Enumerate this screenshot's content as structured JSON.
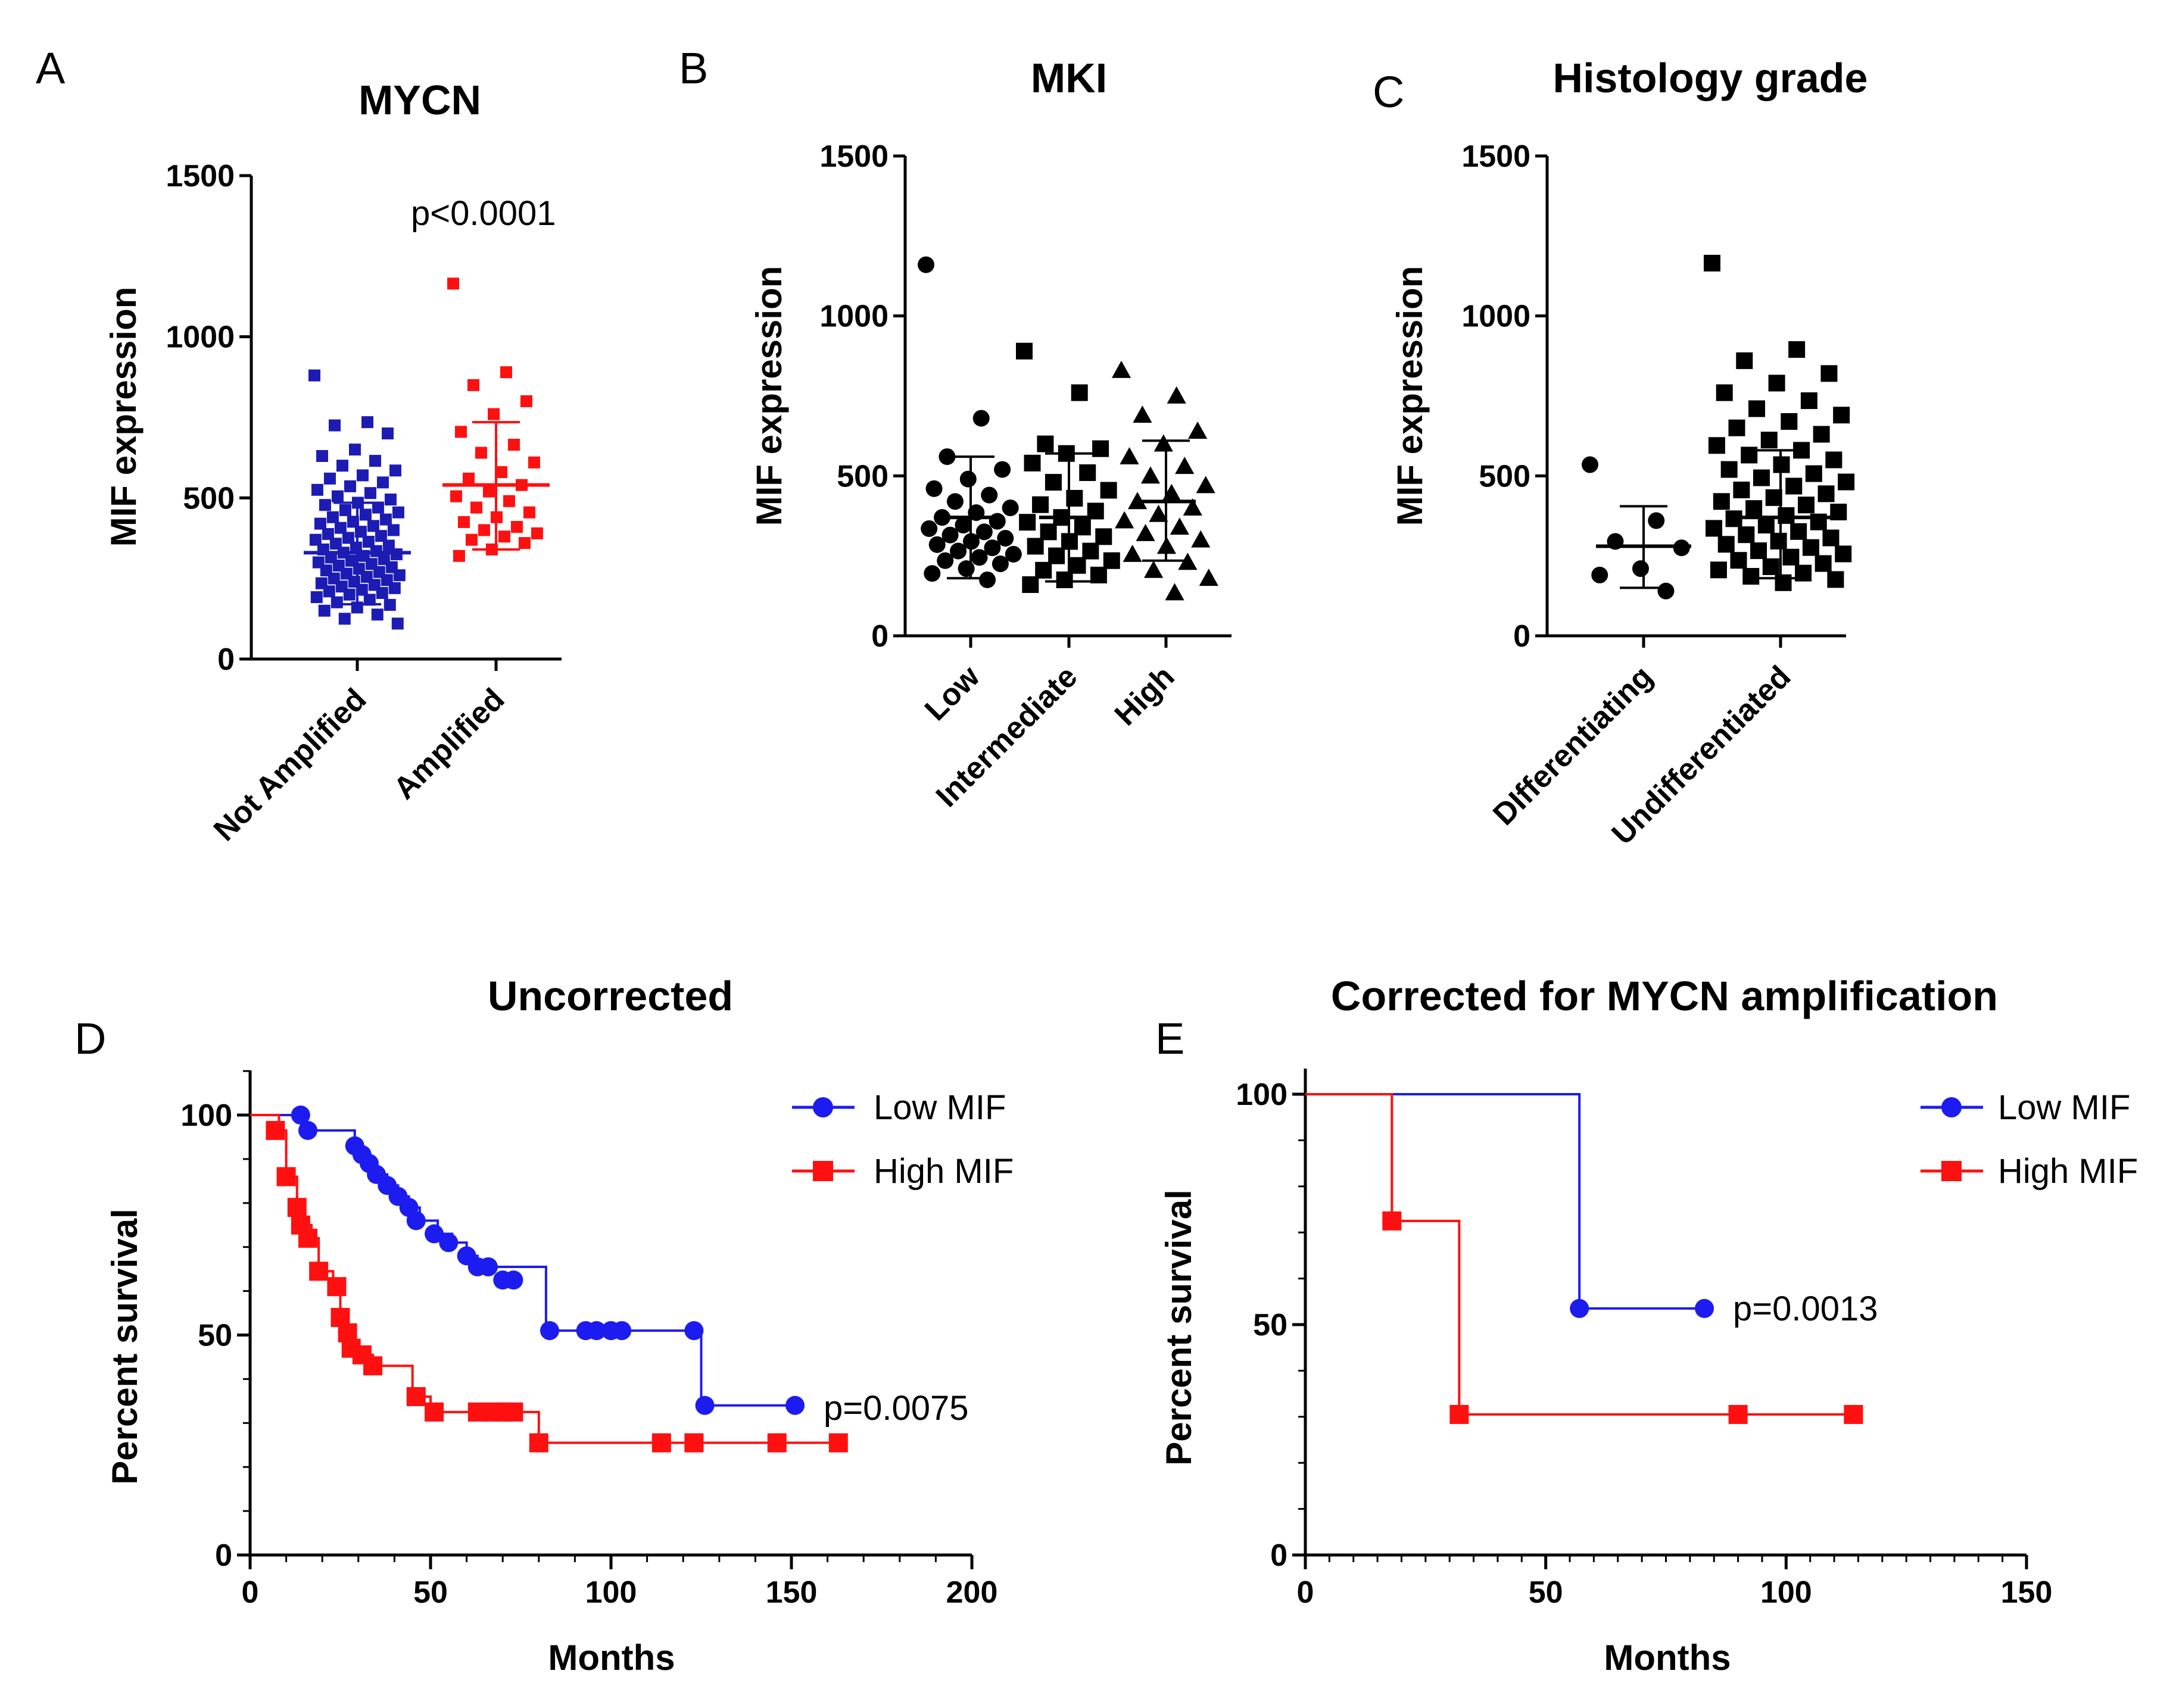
{
  "chart_data": [
    {
      "panel_label": "A",
      "type": "scatter",
      "title": "MYCN",
      "ylabel": "MIF expression",
      "ylim": [
        0,
        1500
      ],
      "yticks": [
        0,
        500,
        1000,
        1500
      ],
      "categories": [
        "Not Amplified",
        "Amplified"
      ],
      "annotation": "p<0.0001",
      "groups": [
        {
          "name": "Not Amplified",
          "color": "#1c1cb4",
          "marker": "square",
          "mean": 330,
          "sd_low": 170,
          "sd_high": 485,
          "values": [
            880,
            735,
            725,
            700,
            650,
            630,
            615,
            600,
            585,
            570,
            560,
            548,
            536,
            525,
            515,
            505,
            495,
            485,
            478,
            470,
            462,
            455,
            448,
            440,
            433,
            426,
            420,
            413,
            407,
            400,
            395,
            388,
            382,
            376,
            370,
            364,
            358,
            352,
            346,
            340,
            335,
            330,
            325,
            320,
            315,
            310,
            305,
            300,
            295,
            290,
            285,
            280,
            275,
            270,
            265,
            260,
            255,
            250,
            245,
            240,
            235,
            230,
            225,
            220,
            215,
            210,
            205,
            200,
            192,
            184,
            176,
            168,
            160,
            150,
            138,
            125,
            110
          ]
        },
        {
          "name": "Amplified",
          "color": "#ff1010",
          "marker": "square",
          "mean": 540,
          "sd_low": 340,
          "sd_high": 735,
          "values": [
            1165,
            890,
            850,
            800,
            760,
            705,
            665,
            640,
            610,
            580,
            560,
            540,
            520,
            505,
            490,
            470,
            455,
            440,
            425,
            410,
            400,
            390,
            380,
            370,
            360,
            340,
            320
          ]
        }
      ]
    },
    {
      "panel_label": "B",
      "type": "scatter",
      "title": "MKI",
      "ylabel": "MIF expression",
      "ylim": [
        0,
        1500
      ],
      "yticks": [
        0,
        500,
        1000,
        1500
      ],
      "categories": [
        "Low",
        "Intermediate",
        "High"
      ],
      "groups": [
        {
          "name": "Low",
          "color": "#000000",
          "marker": "circle",
          "mean": 370,
          "sd_low": 180,
          "sd_high": 560,
          "values": [
            1160,
            680,
            560,
            520,
            490,
            460,
            440,
            420,
            400,
            385,
            370,
            358,
            346,
            335,
            325,
            315,
            305,
            295,
            285,
            275,
            265,
            255,
            245,
            235,
            225,
            210,
            195,
            175
          ]
        },
        {
          "name": "Intermediate",
          "color": "#000000",
          "marker": "square",
          "mean": 370,
          "sd_low": 170,
          "sd_high": 570,
          "values": [
            890,
            760,
            600,
            585,
            570,
            540,
            510,
            480,
            455,
            430,
            410,
            390,
            370,
            355,
            340,
            325,
            310,
            295,
            280,
            265,
            250,
            235,
            220,
            205,
            190,
            175,
            160
          ]
        },
        {
          "name": "High",
          "color": "#000000",
          "marker": "triangle",
          "mean": 420,
          "sd_low": 235,
          "sd_high": 610,
          "values": [
            830,
            750,
            690,
            640,
            600,
            560,
            530,
            500,
            470,
            445,
            420,
            400,
            380,
            360,
            340,
            320,
            300,
            280,
            255,
            230,
            205,
            180,
            135
          ]
        }
      ]
    },
    {
      "panel_label": "C",
      "type": "scatter",
      "title": "Histology grade",
      "ylabel": "MIF expression",
      "ylim": [
        0,
        1500
      ],
      "yticks": [
        0,
        500,
        1000,
        1500
      ],
      "categories": [
        "DIfferentiating",
        "Undifferentiated"
      ],
      "groups": [
        {
          "name": "DIfferentiating",
          "color": "#000000",
          "marker": "circle",
          "mean": 280,
          "sd_low": 150,
          "sd_high": 405,
          "values": [
            535,
            360,
            295,
            275,
            210,
            190,
            140
          ]
        },
        {
          "name": "Undifferentiated",
          "color": "#000000",
          "marker": "square",
          "mean": 370,
          "sd_low": 180,
          "sd_high": 580,
          "values": [
            1165,
            895,
            860,
            820,
            790,
            760,
            735,
            710,
            690,
            670,
            650,
            630,
            612,
            595,
            580,
            565,
            550,
            535,
            520,
            507,
            494,
            481,
            468,
            456,
            444,
            432,
            420,
            409,
            398,
            387,
            376,
            366,
            356,
            346,
            336,
            326,
            316,
            306,
            296,
            286,
            276,
            266,
            256,
            246,
            236,
            226,
            216,
            206,
            196,
            186,
            176,
            166
          ]
        }
      ]
    },
    {
      "panel_label": "D",
      "type": "line",
      "subtype": "kaplan-meier",
      "title": "Uncorrected",
      "xlabel": "Months",
      "ylabel": "Percent survival",
      "xlim": [
        0,
        200
      ],
      "ylim": [
        0,
        110
      ],
      "xticks": [
        0,
        50,
        100,
        150,
        200
      ],
      "yticks": [
        0,
        50,
        100
      ],
      "annotation": "p=0.0075",
      "series": [
        {
          "name": "Low MIF",
          "color": "#1c1cf0",
          "marker": "circle",
          "steps": [
            [
              0,
              100
            ],
            [
              14,
              100
            ],
            [
              15,
              96.5
            ],
            [
              28,
              96.5
            ],
            [
              29,
              93
            ],
            [
              31,
              91
            ],
            [
              33,
              89
            ],
            [
              35,
              86.5
            ],
            [
              38,
              84
            ],
            [
              41,
              81.5
            ],
            [
              44,
              79
            ],
            [
              47,
              76
            ],
            [
              52,
              73
            ],
            [
              56,
              71
            ],
            [
              60,
              68
            ],
            [
              63,
              65.5
            ],
            [
              82,
              65.5
            ],
            [
              82,
              51
            ],
            [
              124,
              51
            ],
            [
              125,
              34
            ],
            [
              151,
              34
            ]
          ],
          "censored": [
            [
              14,
              100
            ],
            [
              16,
              96.5
            ],
            [
              29,
              93
            ],
            [
              31,
              91
            ],
            [
              33,
              89
            ],
            [
              35,
              86.5
            ],
            [
              38,
              84
            ],
            [
              41,
              81.5
            ],
            [
              44,
              79
            ],
            [
              46,
              76
            ],
            [
              51,
              73
            ],
            [
              55,
              71
            ],
            [
              60,
              68
            ],
            [
              63,
              65.5
            ],
            [
              66,
              65.5
            ],
            [
              70,
              62.5
            ],
            [
              73,
              62.5
            ],
            [
              83,
              51
            ],
            [
              93,
              51
            ],
            [
              96,
              51
            ],
            [
              100,
              51
            ],
            [
              103,
              51
            ],
            [
              123,
              51
            ],
            [
              126,
              34
            ],
            [
              151,
              34
            ]
          ]
        },
        {
          "name": "High MIF",
          "color": "#ff1010",
          "marker": "square",
          "steps": [
            [
              0,
              100
            ],
            [
              7,
              100
            ],
            [
              8,
              96.5
            ],
            [
              10,
              86
            ],
            [
              13,
              79
            ],
            [
              15,
              75
            ],
            [
              17,
              72
            ],
            [
              19,
              64.5
            ],
            [
              23,
              61
            ],
            [
              25,
              54
            ],
            [
              27,
              50.5
            ],
            [
              29,
              47
            ],
            [
              31,
              45.5
            ],
            [
              34,
              43
            ],
            [
              45,
              36
            ],
            [
              50,
              32.5
            ],
            [
              80,
              32.5
            ],
            [
              80,
              25.5
            ],
            [
              163,
              25.5
            ]
          ],
          "censored": [
            [
              7,
              96.5
            ],
            [
              10,
              86
            ],
            [
              13,
              79
            ],
            [
              14,
              75
            ],
            [
              16,
              72
            ],
            [
              19,
              64.5
            ],
            [
              24,
              61
            ],
            [
              25,
              54
            ],
            [
              27,
              50.5
            ],
            [
              28,
              47
            ],
            [
              31,
              45.5
            ],
            [
              34,
              43
            ],
            [
              46,
              36
            ],
            [
              51,
              32.5
            ],
            [
              63,
              32.5
            ],
            [
              67,
              32.5
            ],
            [
              70,
              32.5
            ],
            [
              73,
              32.5
            ],
            [
              80,
              25.5
            ],
            [
              114,
              25.5
            ],
            [
              123,
              25.5
            ],
            [
              146,
              25.5
            ],
            [
              163,
              25.5
            ]
          ]
        }
      ],
      "legend": "top-right"
    },
    {
      "panel_label": "E",
      "type": "line",
      "subtype": "kaplan-meier",
      "title": "Corrected for MYCN amplification",
      "xlabel": "Months",
      "ylabel": "Percent survival",
      "xlim": [
        0,
        150
      ],
      "ylim": [
        0,
        100
      ],
      "xticks": [
        0,
        50,
        100,
        150
      ],
      "yticks": [
        0,
        50,
        100
      ],
      "annotation": "p=0.0013",
      "series": [
        {
          "name": "Low MIF",
          "color": "#1c1cf0",
          "marker": "circle",
          "steps": [
            [
              0,
              100
            ],
            [
              57,
              100
            ],
            [
              57,
              53.5
            ],
            [
              83,
              53.5
            ]
          ],
          "censored": [
            [
              57,
              53.5
            ],
            [
              83,
              53.5
            ]
          ]
        },
        {
          "name": "High MIF",
          "color": "#ff1010",
          "marker": "square",
          "steps": [
            [
              0,
              100
            ],
            [
              18,
              100
            ],
            [
              18,
              72.5
            ],
            [
              32,
              72.5
            ],
            [
              32,
              30.5
            ],
            [
              114,
              30.5
            ]
          ],
          "censored": [
            [
              18,
              72.5
            ],
            [
              32,
              30.5
            ],
            [
              90,
              30.5
            ],
            [
              114,
              30.5
            ]
          ]
        }
      ],
      "legend": "top-right"
    }
  ]
}
